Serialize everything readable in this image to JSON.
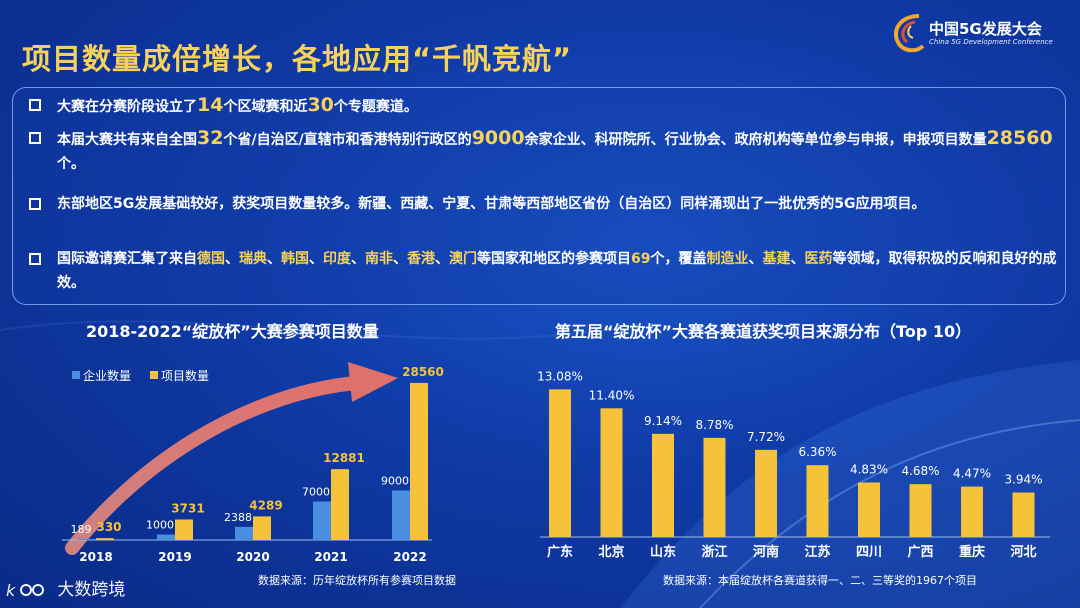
{
  "title": "项目数量成倍增长，各地应用“千帆竞航”",
  "logo": {
    "title": "中国5G发展大会",
    "subtitle": "China 5G Development Conference"
  },
  "bullets": [
    [
      {
        "t": "大赛在分赛阶段设立了"
      },
      {
        "t": "14",
        "hl": "big"
      },
      {
        "t": "个区域赛和近"
      },
      {
        "t": "30",
        "hl": "big"
      },
      {
        "t": "个专题赛道。"
      }
    ],
    [
      {
        "t": "本届大赛共有来自全国"
      },
      {
        "t": "32",
        "hl": "big"
      },
      {
        "t": "个省/自治区/直辖市和香港特别行政区的"
      },
      {
        "t": "9000",
        "hl": "big"
      },
      {
        "t": "余家企业、科研院所、行业协会、政府机构等单位参与申报，申报项目数量"
      },
      {
        "t": "28560",
        "hl": "big"
      },
      {
        "t": "个。"
      }
    ],
    [
      {
        "t": "东部地区5G发展基础较好，获奖项目数量较多。新疆、西藏、宁夏、甘肃等西部地区省份（自治区）同样涌现出了一批优秀的5G应用项目。"
      }
    ],
    [
      {
        "t": "国际邀请赛汇集了来自"
      },
      {
        "t": "德国",
        "hl": "y"
      },
      {
        "t": "、"
      },
      {
        "t": "瑞典",
        "hl": "y"
      },
      {
        "t": "、"
      },
      {
        "t": "韩国",
        "hl": "y"
      },
      {
        "t": "、"
      },
      {
        "t": "印度",
        "hl": "y"
      },
      {
        "t": "、"
      },
      {
        "t": "南非",
        "hl": "y"
      },
      {
        "t": "、"
      },
      {
        "t": "香港",
        "hl": "y"
      },
      {
        "t": "、"
      },
      {
        "t": "澳门",
        "hl": "y"
      },
      {
        "t": "等国家和地区的参赛项目"
      },
      {
        "t": "69",
        "hl": "y"
      },
      {
        "t": "个，覆盖"
      },
      {
        "t": "制造业",
        "hl": "y"
      },
      {
        "t": "、"
      },
      {
        "t": "基建",
        "hl": "y"
      },
      {
        "t": "、"
      },
      {
        "t": "医药",
        "hl": "y"
      },
      {
        "t": "等领域，取得积极的反响和良好的成效。"
      }
    ]
  ],
  "left_chart": {
    "title": "2018-2022“绽放杯”大赛参赛项目数量",
    "source": "数据来源：历年绽放杯所有参赛项目数据"
  },
  "right_chart": {
    "title": "第五届“绽放杯”大赛各赛道获奖项目来源分布（Top 10）",
    "source": "数据来源：本届绽放杯各赛道获得一、二、三等奖的1967个项目"
  },
  "watermark": "大数跨境",
  "colors": {
    "accent": "#f7d25a",
    "enterprise": "#4a8ee0",
    "project": "#f5c23a",
    "arrow": "#e0706a"
  },
  "chart_data": [
    {
      "type": "bar",
      "categories": [
        "2018",
        "2019",
        "2020",
        "2021",
        "2022"
      ],
      "series": [
        {
          "name": "企业数量",
          "values": [
            189,
            1000,
            2388,
            7000,
            9000
          ]
        },
        {
          "name": "项目数量",
          "values": [
            330,
            3731,
            4289,
            12881,
            28560
          ]
        }
      ],
      "ylim": [
        0,
        30000
      ],
      "legend": "top-left",
      "grid": false
    },
    {
      "type": "bar",
      "categories": [
        "广东",
        "北京",
        "山东",
        "浙江",
        "河南",
        "江苏",
        "四川",
        "广西",
        "重庆",
        "河北"
      ],
      "values": [
        13.08,
        11.4,
        9.14,
        8.78,
        7.72,
        6.36,
        4.83,
        4.68,
        4.47,
        3.94
      ],
      "value_labels": [
        "13.08%",
        "11.40%",
        "9.14%",
        "8.78%",
        "7.72%",
        "6.36%",
        "4.83%",
        "4.68%",
        "4.47%",
        "3.94%"
      ],
      "unit": "%",
      "ylim": [
        0,
        14
      ],
      "grid": false
    }
  ]
}
